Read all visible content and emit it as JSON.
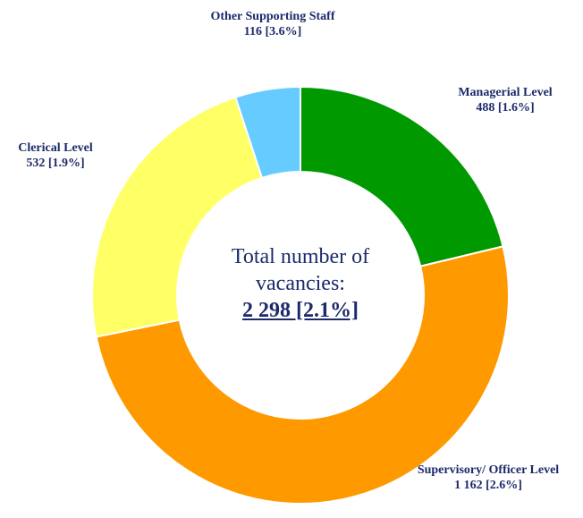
{
  "chart_data": {
    "type": "donut",
    "categories": [
      "Managerial Level",
      "Supervisory/ Officer Level",
      "Clerical Level",
      "Other Supporting Staff"
    ],
    "values": [
      488,
      1162,
      532,
      116
    ],
    "value_labels": [
      "488 [1.6%]",
      "1 162 [2.6%]",
      "532 [1.9%]",
      "116 [3.6%]"
    ],
    "colors": [
      "#009900",
      "#ff9900",
      "#ffff66",
      "#66ccff"
    ],
    "center_text": "Total number of vacancies:",
    "total_label": "2 298 [2.1%]"
  }
}
